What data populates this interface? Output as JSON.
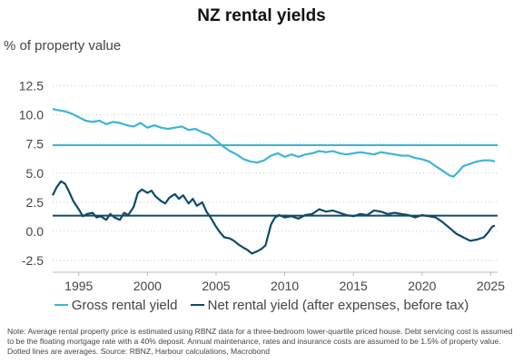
{
  "chart_data": {
    "type": "line",
    "title": "NZ rental yields",
    "ylabel": "% of property value",
    "xlabel": "",
    "xlim": [
      1993.1,
      2025.5
    ],
    "ylim": [
      -3.5,
      13.0
    ],
    "x_ticks": [
      1995,
      2000,
      2005,
      2010,
      2015,
      2020,
      2025
    ],
    "y_ticks": [
      12.5,
      10.0,
      7.5,
      5.0,
      2.5,
      0.0,
      -2.5
    ],
    "y_tick_labels": [
      "12.5",
      "10.0",
      "7.5",
      "5.0",
      "2.5",
      "0.0",
      "-2.5"
    ],
    "gridlines": "horizontal-dotted",
    "series": [
      {
        "name": "Gross rental yield",
        "color": "#3db4d8",
        "points": [
          [
            1993.1,
            10.5
          ],
          [
            1993.5,
            10.4
          ],
          [
            1994.0,
            10.3
          ],
          [
            1994.5,
            10.1
          ],
          [
            1995.0,
            9.8
          ],
          [
            1995.5,
            9.5
          ],
          [
            1996.0,
            9.4
          ],
          [
            1996.5,
            9.5
          ],
          [
            1997.0,
            9.2
          ],
          [
            1997.5,
            9.4
          ],
          [
            1998.0,
            9.3
          ],
          [
            1998.5,
            9.1
          ],
          [
            1999.0,
            9.0
          ],
          [
            1999.5,
            9.3
          ],
          [
            2000.0,
            8.9
          ],
          [
            2000.5,
            9.1
          ],
          [
            2001.0,
            8.9
          ],
          [
            2001.5,
            8.8
          ],
          [
            2002.0,
            8.9
          ],
          [
            2002.5,
            9.0
          ],
          [
            2003.0,
            8.7
          ],
          [
            2003.5,
            8.8
          ],
          [
            2004.0,
            8.5
          ],
          [
            2004.5,
            8.3
          ],
          [
            2005.0,
            7.8
          ],
          [
            2005.5,
            7.3
          ],
          [
            2006.0,
            6.9
          ],
          [
            2006.5,
            6.6
          ],
          [
            2007.0,
            6.2
          ],
          [
            2007.5,
            6.0
          ],
          [
            2008.0,
            5.9
          ],
          [
            2008.5,
            6.1
          ],
          [
            2009.0,
            6.5
          ],
          [
            2009.5,
            6.7
          ],
          [
            2010.0,
            6.4
          ],
          [
            2010.5,
            6.6
          ],
          [
            2011.0,
            6.4
          ],
          [
            2011.5,
            6.6
          ],
          [
            2012.0,
            6.7
          ],
          [
            2012.5,
            6.9
          ],
          [
            2013.0,
            6.8
          ],
          [
            2013.5,
            6.9
          ],
          [
            2014.0,
            6.7
          ],
          [
            2014.5,
            6.6
          ],
          [
            2015.0,
            6.7
          ],
          [
            2015.5,
            6.8
          ],
          [
            2016.0,
            6.7
          ],
          [
            2016.5,
            6.6
          ],
          [
            2017.0,
            6.8
          ],
          [
            2017.5,
            6.7
          ],
          [
            2018.0,
            6.6
          ],
          [
            2018.5,
            6.5
          ],
          [
            2019.0,
            6.5
          ],
          [
            2019.5,
            6.3
          ],
          [
            2020.0,
            6.2
          ],
          [
            2020.5,
            6.0
          ],
          [
            2021.0,
            5.6
          ],
          [
            2021.5,
            5.2
          ],
          [
            2022.0,
            4.8
          ],
          [
            2022.3,
            4.7
          ],
          [
            2022.7,
            5.2
          ],
          [
            2023.0,
            5.6
          ],
          [
            2023.5,
            5.8
          ],
          [
            2024.0,
            6.0
          ],
          [
            2024.5,
            6.1
          ],
          [
            2025.0,
            6.1
          ],
          [
            2025.3,
            6.0
          ]
        ]
      },
      {
        "name": "Net rental yield (after expenses, before tax)",
        "color": "#0f4a66",
        "points": [
          [
            1993.1,
            3.1
          ],
          [
            1993.4,
            3.8
          ],
          [
            1993.7,
            4.3
          ],
          [
            1994.0,
            4.1
          ],
          [
            1994.3,
            3.4
          ],
          [
            1994.6,
            2.6
          ],
          [
            1995.0,
            1.9
          ],
          [
            1995.3,
            1.3
          ],
          [
            1995.6,
            1.5
          ],
          [
            1996.0,
            1.6
          ],
          [
            1996.3,
            1.2
          ],
          [
            1996.6,
            1.3
          ],
          [
            1997.0,
            1.0
          ],
          [
            1997.3,
            1.5
          ],
          [
            1997.6,
            1.2
          ],
          [
            1998.0,
            1.0
          ],
          [
            1998.3,
            1.6
          ],
          [
            1998.6,
            1.4
          ],
          [
            1999.0,
            2.1
          ],
          [
            1999.3,
            3.3
          ],
          [
            1999.6,
            3.6
          ],
          [
            2000.0,
            3.3
          ],
          [
            2000.3,
            3.5
          ],
          [
            2000.6,
            3.0
          ],
          [
            2001.0,
            2.6
          ],
          [
            2001.3,
            2.4
          ],
          [
            2001.6,
            2.9
          ],
          [
            2002.0,
            3.2
          ],
          [
            2002.3,
            2.8
          ],
          [
            2002.6,
            3.1
          ],
          [
            2003.0,
            2.4
          ],
          [
            2003.3,
            2.8
          ],
          [
            2003.6,
            2.2
          ],
          [
            2004.0,
            2.5
          ],
          [
            2004.3,
            1.7
          ],
          [
            2004.6,
            1.2
          ],
          [
            2005.0,
            0.4
          ],
          [
            2005.3,
            -0.1
          ],
          [
            2005.6,
            -0.5
          ],
          [
            2006.0,
            -0.6
          ],
          [
            2006.3,
            -0.8
          ],
          [
            2006.6,
            -1.1
          ],
          [
            2007.0,
            -1.4
          ],
          [
            2007.3,
            -1.6
          ],
          [
            2007.6,
            -1.9
          ],
          [
            2008.0,
            -1.7
          ],
          [
            2008.3,
            -1.5
          ],
          [
            2008.6,
            -1.2
          ],
          [
            2009.0,
            0.6
          ],
          [
            2009.3,
            1.2
          ],
          [
            2009.6,
            1.4
          ],
          [
            2010.0,
            1.2
          ],
          [
            2010.5,
            1.3
          ],
          [
            2011.0,
            1.1
          ],
          [
            2011.5,
            1.4
          ],
          [
            2012.0,
            1.5
          ],
          [
            2012.5,
            1.9
          ],
          [
            2013.0,
            1.7
          ],
          [
            2013.5,
            1.8
          ],
          [
            2014.0,
            1.6
          ],
          [
            2014.5,
            1.4
          ],
          [
            2015.0,
            1.3
          ],
          [
            2015.5,
            1.5
          ],
          [
            2016.0,
            1.4
          ],
          [
            2016.5,
            1.8
          ],
          [
            2017.0,
            1.7
          ],
          [
            2017.5,
            1.5
          ],
          [
            2018.0,
            1.6
          ],
          [
            2018.5,
            1.5
          ],
          [
            2019.0,
            1.4
          ],
          [
            2019.5,
            1.2
          ],
          [
            2020.0,
            1.4
          ],
          [
            2020.5,
            1.3
          ],
          [
            2021.0,
            1.2
          ],
          [
            2021.5,
            0.8
          ],
          [
            2022.0,
            0.3
          ],
          [
            2022.5,
            -0.2
          ],
          [
            2023.0,
            -0.5
          ],
          [
            2023.5,
            -0.8
          ],
          [
            2024.0,
            -0.7
          ],
          [
            2024.5,
            -0.5
          ],
          [
            2024.8,
            -0.1
          ],
          [
            2025.1,
            0.4
          ],
          [
            2025.3,
            0.5
          ]
        ]
      }
    ],
    "reference_lines": [
      {
        "series": "Gross rental yield",
        "y": 7.4,
        "color": "#3db4d8"
      },
      {
        "series": "Net rental yield (after expenses, before tax)",
        "y": 1.35,
        "color": "#0f4a66"
      }
    ],
    "legend_position": "bottom",
    "note": "Note: Average rental property price is estimated using RBNZ data for a three-bedroom lower-quartile priced house. Debt servicing cost is assumed to be the floating mortgage rate with a 40% deposit. Annual maintenance, rates and insurance costs are assumed to be 1.5% of property value. Dotted lines are averages.  Source: RBNZ, Harbour calculations, Macrobond"
  }
}
